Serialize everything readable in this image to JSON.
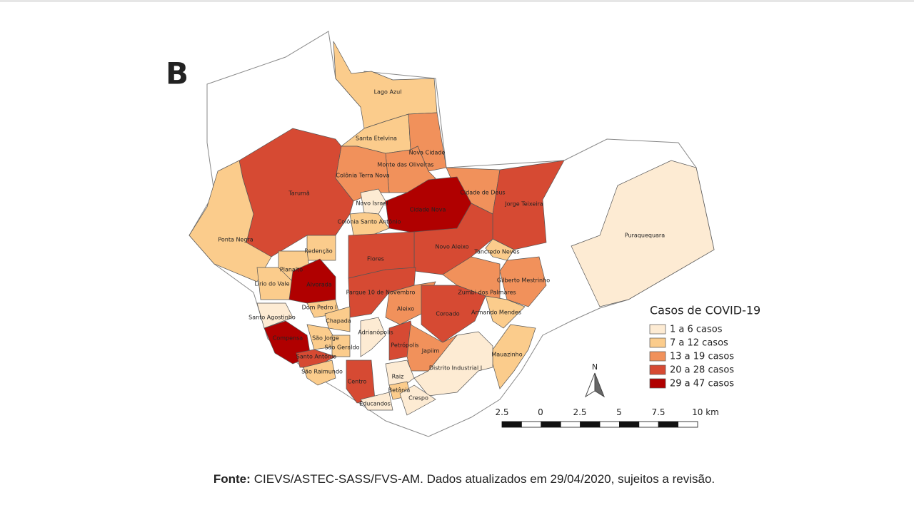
{
  "panel_label": "B",
  "map": {
    "regions": [
      {
        "name": "Lago Azul",
        "class": 1
      },
      {
        "name": "Santa Etelvina",
        "class": 1
      },
      {
        "name": "Nova Cidade",
        "class": 2
      },
      {
        "name": "Monte das Oliveiras",
        "class": 2
      },
      {
        "name": "Colônia Terra Nova",
        "class": 2
      },
      {
        "name": "Tarumã",
        "class": 3
      },
      {
        "name": "Cidade de Deus",
        "class": 2
      },
      {
        "name": "Jorge Teixeira",
        "class": 3
      },
      {
        "name": "Novo Israel",
        "class": 0
      },
      {
        "name": "Cidade Nova",
        "class": 4
      },
      {
        "name": "Colônia Santo Antônio",
        "class": 1
      },
      {
        "name": "Puraquequara",
        "class": 0
      },
      {
        "name": "Ponta Negra",
        "class": 1
      },
      {
        "name": "Redenção",
        "class": 1
      },
      {
        "name": "Novo Aleixo",
        "class": 3
      },
      {
        "name": "Tancredo Neves",
        "class": 1
      },
      {
        "name": "Flores",
        "class": 3
      },
      {
        "name": "Planalto",
        "class": 1
      },
      {
        "name": "Lírio do Vale",
        "class": 1
      },
      {
        "name": "Alvorada",
        "class": 4
      },
      {
        "name": "Gilberto Mestrinho",
        "class": 2
      },
      {
        "name": "Parque 10 de Novembro",
        "class": 3
      },
      {
        "name": "Zumbi dos Palmares",
        "class": 2
      },
      {
        "name": "Dom Pedro I",
        "class": 1
      },
      {
        "name": "Aleixo",
        "class": 2
      },
      {
        "name": "Coroado",
        "class": 3
      },
      {
        "name": "Armando Mendes",
        "class": 1
      },
      {
        "name": "Santo Agostinho",
        "class": 0
      },
      {
        "name": "Chapada",
        "class": 1
      },
      {
        "name": "Adrianópolis",
        "class": 0
      },
      {
        "name": "Compensa",
        "class": 4
      },
      {
        "name": "São Jorge",
        "class": 1
      },
      {
        "name": "Petrópolis",
        "class": 3
      },
      {
        "name": "São Geraldo",
        "class": 1
      },
      {
        "name": "Japiim",
        "class": 2
      },
      {
        "name": "Mauazinho",
        "class": 1
      },
      {
        "name": "Santo Antônio",
        "class": 3
      },
      {
        "name": "Distrito Industrial I",
        "class": 0
      },
      {
        "name": "São Raimundo",
        "class": 1
      },
      {
        "name": "Raiz",
        "class": 0
      },
      {
        "name": "Centro",
        "class": 3
      },
      {
        "name": "Betânia",
        "class": 1
      },
      {
        "name": "Educandos",
        "class": 0
      },
      {
        "name": "Crespo",
        "class": 0
      }
    ]
  },
  "legend": {
    "title": "Casos de COVID-19",
    "items": [
      {
        "label": "1 a 6 casos",
        "color": "#fdebd3"
      },
      {
        "label": "7 a 12 casos",
        "color": "#fbcc8c"
      },
      {
        "label": "13 a 19 casos",
        "color": "#f1915b"
      },
      {
        "label": "20 a 28 casos",
        "color": "#d64a33"
      },
      {
        "label": "29 a 47 casos",
        "color": "#b00000"
      }
    ]
  },
  "north": "N",
  "scale_bar": {
    "labels": [
      "2.5",
      "0",
      "2.5",
      "5",
      "7.5",
      "10 km"
    ]
  },
  "source": {
    "label": "Fonte:",
    "text": "CIEVS/ASTEC-SASS/FVS-AM. Dados atualizados em 29/04/2020, sujeitos a revisão."
  }
}
